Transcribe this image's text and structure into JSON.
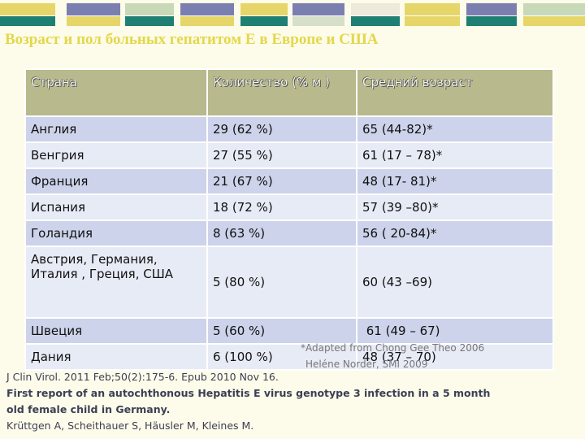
{
  "colors": {
    "title": "#e3d84a",
    "header_bg": "#b8b98c",
    "row_alt": "#ccd3ea",
    "row_plain": "#e7ebf6",
    "note": "#777777",
    "refs": "#3b3f55",
    "strip_palette": [
      "#e6d66a",
      "#7b7fb0",
      "#1f7f73",
      "#c7d9b6",
      "#eeeadb",
      "#d6dfc9"
    ]
  },
  "title": "Возраст и пол  больных гепатитом Е в Европе и США",
  "table": {
    "headers": [
      "Страна",
      "Количество (% м )",
      "Средний возраст"
    ],
    "rows": [
      [
        "Англия",
        "29 (62 %)",
        "65 (44-82)*"
      ],
      [
        "Венгрия",
        "27 (55 %)",
        "61 (17 – 78)*"
      ],
      [
        "Франция",
        "21 (67 %)",
        "48 (17- 81)*"
      ],
      [
        "Испания",
        "18 (72 %)",
        "57 (39 –80)*"
      ],
      [
        "Голандия",
        "8 (63 %)",
        "56 ( 20-84)*"
      ],
      [
        "Австрия, Германия, Италия , Греция, США",
        "5 (80 %)",
        "60 (43 –69)"
      ],
      [
        "Швеция",
        "5 (60 %)",
        " 61 (49 – 67)"
      ],
      [
        "Дания",
        "6 (100 %)",
        "48 (37 – 70)"
      ]
    ]
  },
  "note": {
    "line1": "*Adapted from Chong Gee Theo 2006",
    "line2": "Heléne Norder, SMI 2009"
  },
  "references": {
    "line1": "J Clin Virol. 2011 Feb;50(2):175-6. Epub 2010 Nov 16.",
    "line2": "First report of an autochthonous Hepatitis E virus genotype 3 infection in a 5 month",
    "line3": "old female child in Germany.",
    "line4": "Krüttgen A, Scheithauer S, Häusler M, Kleines M."
  }
}
